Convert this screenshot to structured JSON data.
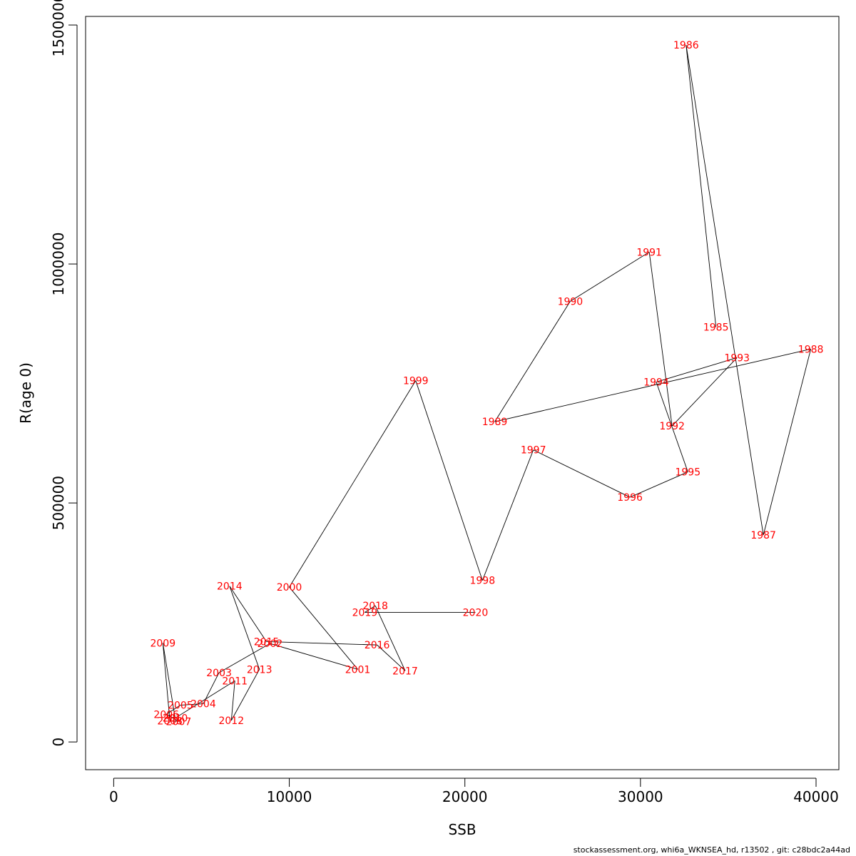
{
  "chart_data": {
    "type": "line",
    "xlabel": "SSB",
    "ylabel": "R(age 0)",
    "xlim": [
      -1600,
      41300
    ],
    "ylim": [
      -58000,
      1518000
    ],
    "x_ticks": [
      0,
      10000,
      20000,
      30000,
      40000
    ],
    "y_ticks": [
      0,
      500000,
      1000000,
      1500000
    ],
    "x_tick_labels": [
      "0",
      "10000",
      "20000",
      "30000",
      "40000"
    ],
    "y_tick_labels": [
      "0",
      "500000",
      "1000000",
      "1500000"
    ],
    "line_color": "#000000",
    "label_color": "#ff0000",
    "points": [
      {
        "year": "1985",
        "x": 34300,
        "y": 868000
      },
      {
        "year": "1986",
        "x": 32600,
        "y": 1458000
      },
      {
        "year": "1987",
        "x": 37000,
        "y": 433000
      },
      {
        "year": "1988",
        "x": 39700,
        "y": 822000
      },
      {
        "year": "1989",
        "x": 21700,
        "y": 670000
      },
      {
        "year": "1990",
        "x": 26000,
        "y": 922000
      },
      {
        "year": "1991",
        "x": 30500,
        "y": 1025000
      },
      {
        "year": "1992",
        "x": 31800,
        "y": 661000
      },
      {
        "year": "1993",
        "x": 35500,
        "y": 804000
      },
      {
        "year": "1994",
        "x": 30900,
        "y": 753000
      },
      {
        "year": "1995",
        "x": 32700,
        "y": 565000
      },
      {
        "year": "1996",
        "x": 29400,
        "y": 512000
      },
      {
        "year": "1997",
        "x": 23900,
        "y": 611000
      },
      {
        "year": "1998",
        "x": 21000,
        "y": 338000
      },
      {
        "year": "1999",
        "x": 17200,
        "y": 756000
      },
      {
        "year": "2000",
        "x": 10000,
        "y": 324000
      },
      {
        "year": "2001",
        "x": 13900,
        "y": 152000
      },
      {
        "year": "2002",
        "x": 8900,
        "y": 206000
      },
      {
        "year": "2003",
        "x": 6000,
        "y": 145000
      },
      {
        "year": "2004",
        "x": 5100,
        "y": 80000
      },
      {
        "year": "2005",
        "x": 3800,
        "y": 77000
      },
      {
        "year": "2006",
        "x": 3000,
        "y": 58000
      },
      {
        "year": "2007",
        "x": 3700,
        "y": 43000
      },
      {
        "year": "2008",
        "x": 3200,
        "y": 44000
      },
      {
        "year": "2009",
        "x": 2800,
        "y": 207000
      },
      {
        "year": "2010",
        "x": 3500,
        "y": 50000
      },
      {
        "year": "2011",
        "x": 6900,
        "y": 128000
      },
      {
        "year": "2012",
        "x": 6700,
        "y": 45000
      },
      {
        "year": "2013",
        "x": 8300,
        "y": 152000
      },
      {
        "year": "2014",
        "x": 6600,
        "y": 326000
      },
      {
        "year": "2015",
        "x": 8700,
        "y": 210000
      },
      {
        "year": "2016",
        "x": 15000,
        "y": 203000
      },
      {
        "year": "2017",
        "x": 16600,
        "y": 149000
      },
      {
        "year": "2018",
        "x": 14900,
        "y": 285000
      },
      {
        "year": "2019",
        "x": 14300,
        "y": 271000
      },
      {
        "year": "2020",
        "x": 20600,
        "y": 271000
      }
    ]
  },
  "footer": "stockassessment.org, whi6a_WKNSEA_hd, r13502 , git: c28bdc2a44ad"
}
